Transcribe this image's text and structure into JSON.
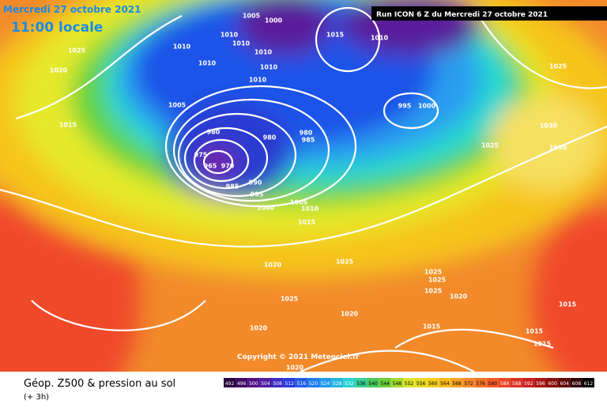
{
  "header": {
    "date": "Mercredi 27 octobre 2021",
    "time": "11:00 locale",
    "run": "Run ICON 6 Z du Mercredi 27 octobre 2021"
  },
  "copyright": "Copyright © 2021 Meteociel.fr",
  "footer": {
    "title": "Géop. Z500 & pression au sol",
    "lead": "(+ 3h)"
  },
  "isobars": [
    1005,
    1000,
    1010,
    1010,
    1010,
    1010,
    1010,
    1010,
    1010,
    1015,
    1010,
    1025,
    1020,
    1025,
    995,
    1000,
    1005,
    1015,
    1030,
    1025,
    1030,
    980,
    980,
    980,
    985,
    975,
    965,
    970,
    985,
    990,
    995,
    1000,
    1005,
    1010,
    1015,
    1020,
    1025,
    1025,
    1025,
    1025,
    1025,
    1020,
    1020,
    1020,
    1015,
    1015,
    1015,
    1015,
    1020
  ],
  "colorbar": [
    492,
    496,
    500,
    504,
    508,
    512,
    516,
    520,
    524,
    528,
    532,
    536,
    540,
    544,
    548,
    552,
    556,
    560,
    564,
    568,
    572,
    576,
    580,
    584,
    588,
    592,
    596,
    600,
    604,
    608,
    612
  ]
}
